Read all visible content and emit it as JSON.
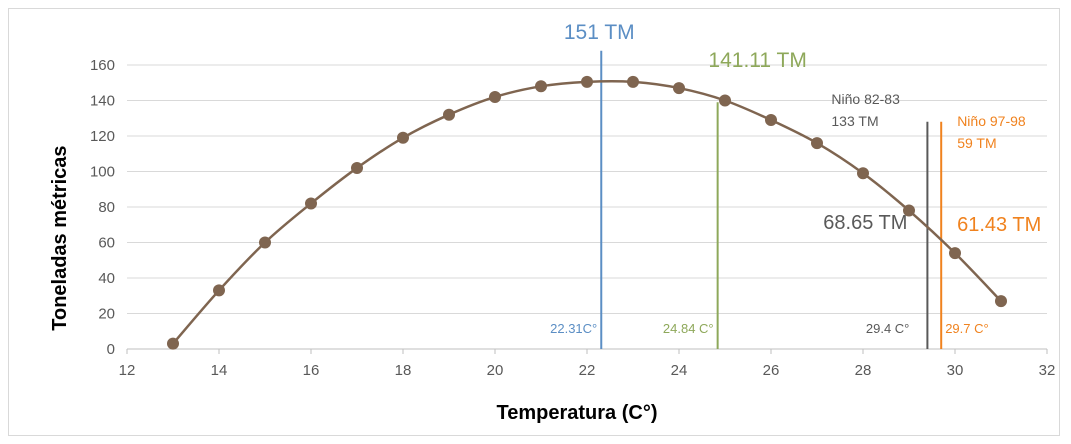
{
  "chart_data": {
    "type": "line",
    "xlabel": "Temperatura (C°)",
    "ylabel": "Toneladas métricas",
    "xlim": [
      12,
      32
    ],
    "ylim": [
      0,
      170
    ],
    "x_ticks": [
      12,
      14,
      16,
      18,
      20,
      22,
      24,
      26,
      28,
      30,
      32
    ],
    "y_ticks": [
      0,
      20,
      40,
      60,
      80,
      100,
      120,
      140,
      160
    ],
    "grid": "horizontal",
    "series": [
      {
        "color": "#7f6550",
        "x": [
          13,
          14,
          15,
          16,
          17,
          18,
          19,
          20,
          21,
          22,
          23,
          24,
          25,
          26,
          27,
          28,
          29,
          30,
          31
        ],
        "y": [
          3,
          33,
          60,
          82,
          102,
          119,
          132,
          142,
          148,
          150.5,
          150.5,
          147,
          140,
          129,
          116,
          99,
          78,
          54,
          27
        ]
      }
    ],
    "reference_lines": [
      {
        "x": 22.31,
        "top": 168,
        "color": "#5b8ec4",
        "value_label": "151 TM",
        "x_label": "22.31C°"
      },
      {
        "x": 24.84,
        "top": 139,
        "color": "#8ea85a",
        "value_label": "141.11 TM",
        "x_label": "24.84 C°"
      },
      {
        "x": 29.4,
        "top": 128,
        "color": "#595959",
        "value_label": "68.65 TM",
        "x_label": "29.4 C°",
        "event_label": [
          "Niño 82-83",
          "133 TM"
        ]
      },
      {
        "x": 29.7,
        "top": 128,
        "color": "#f0821e",
        "value_label": "61.43 TM",
        "x_label": "29.7 C°",
        "event_label": [
          "Niño 97-98",
          "59 TM"
        ]
      }
    ]
  }
}
